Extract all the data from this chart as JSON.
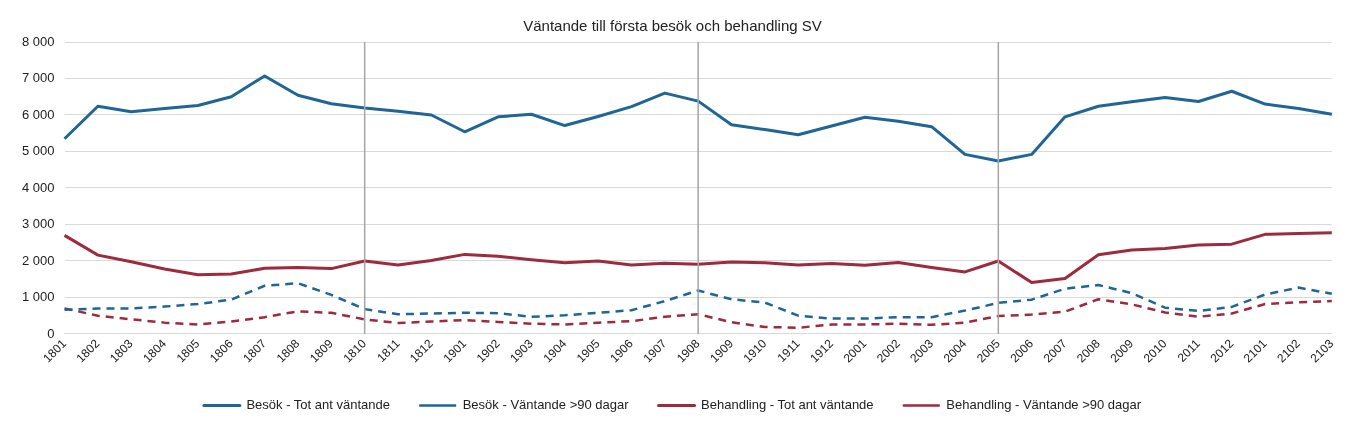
{
  "chart_data": {
    "type": "line",
    "title": "Väntande till första besök och behandling SV",
    "categories": [
      "1801",
      "1802",
      "1803",
      "1804",
      "1805",
      "1806",
      "1807",
      "1808",
      "1809",
      "1810",
      "1811",
      "1812",
      "1901",
      "1902",
      "1903",
      "1904",
      "1905",
      "1906",
      "1907",
      "1908",
      "1909",
      "1910",
      "1911",
      "1912",
      "2001",
      "2002",
      "2003",
      "2004",
      "2005",
      "2006",
      "2007",
      "2008",
      "2009",
      "2010",
      "2011",
      "2012",
      "2101",
      "2102",
      "2103"
    ],
    "series": [
      {
        "name": "Besök - Tot ant väntande",
        "color": "#1f6696",
        "line_style": "solid",
        "values": [
          5350,
          6240,
          6090,
          6180,
          6260,
          6500,
          7070,
          6540,
          6310,
          6190,
          6100,
          6000,
          5540,
          5950,
          6020,
          5710,
          5960,
          6230,
          6600,
          6380,
          5730,
          5600,
          5460,
          5700,
          5940,
          5830,
          5680,
          4920,
          4740,
          4920,
          5950,
          6240,
          6360,
          6480,
          6370,
          6650,
          6300,
          6180,
          6020
        ]
      },
      {
        "name": "Besök - Väntande >90 dagar",
        "color": "#1f6696",
        "line_style": "dashed",
        "values": [
          660,
          700,
          700,
          750,
          820,
          940,
          1320,
          1390,
          1070,
          680,
          540,
          560,
          580,
          570,
          470,
          510,
          580,
          650,
          900,
          1190,
          950,
          860,
          500,
          420,
          420,
          460,
          460,
          640,
          850,
          940,
          1240,
          1340,
          1120,
          720,
          630,
          740,
          1080,
          1270,
          1100
        ]
      },
      {
        "name": "Behandling - Tot ant väntande",
        "color": "#9e2a3e",
        "line_style": "solid",
        "values": [
          2700,
          2160,
          1980,
          1780,
          1620,
          1640,
          1800,
          1820,
          1790,
          2000,
          1890,
          2010,
          2180,
          2130,
          2030,
          1950,
          2000,
          1890,
          1940,
          1910,
          1970,
          1950,
          1890,
          1930,
          1880,
          1960,
          1820,
          1700,
          2000,
          1410,
          1520,
          2170,
          2300,
          2340,
          2440,
          2460,
          2730,
          2750,
          2770
        ]
      },
      {
        "name": "Behandling - Väntande >90 dagar",
        "color": "#9e2a3e",
        "line_style": "dashed",
        "values": [
          700,
          500,
          400,
          310,
          260,
          340,
          460,
          620,
          580,
          400,
          300,
          340,
          380,
          330,
          280,
          260,
          310,
          350,
          470,
          540,
          320,
          190,
          170,
          260,
          260,
          280,
          250,
          310,
          490,
          530,
          610,
          950,
          810,
          590,
          470,
          560,
          820,
          870,
          900
        ]
      }
    ],
    "ylim": [
      0,
      8000
    ],
    "yticks": [
      {
        "value": 0,
        "label": "0"
      },
      {
        "value": 1000,
        "label": "1 000"
      },
      {
        "value": 2000,
        "label": "2 000"
      },
      {
        "value": 3000,
        "label": "3 000"
      },
      {
        "value": 4000,
        "label": "4 000"
      },
      {
        "value": 5000,
        "label": "5 000"
      },
      {
        "value": 6000,
        "label": "6 000"
      },
      {
        "value": 7000,
        "label": "7 000"
      },
      {
        "value": 8000,
        "label": "8 000"
      }
    ],
    "grid": "y",
    "legend": "bottom",
    "marker": "none",
    "ref_lines": [
      {
        "axis": "x",
        "value": "1810",
        "color": "#a6a6a6"
      },
      {
        "axis": "x",
        "value": "1908",
        "color": "#a6a6a6"
      },
      {
        "axis": "x",
        "value": "2005",
        "color": "#a6a6a6"
      }
    ]
  }
}
